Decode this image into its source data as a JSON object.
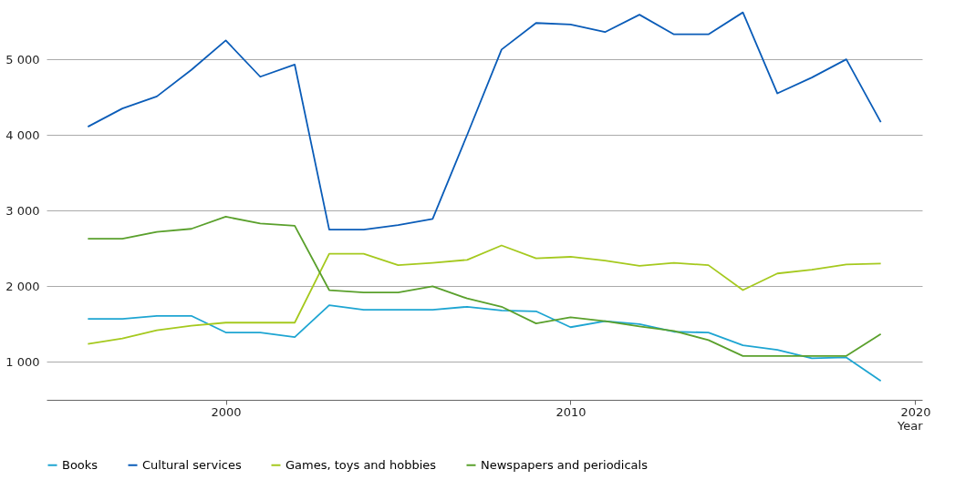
{
  "chart_data": {
    "type": "line",
    "xlabel": "Year",
    "x": [
      1996,
      1997,
      1998,
      1999,
      2000,
      2001,
      2002,
      2003,
      2004,
      2005,
      2006,
      2007,
      2008,
      2009,
      2010,
      2011,
      2012,
      2013,
      2014,
      2015,
      2016,
      2017,
      2018,
      2019
    ],
    "series": [
      {
        "name": "Books",
        "color": "#1ea5d2",
        "values": [
          1570,
          1570,
          1610,
          1610,
          1390,
          1390,
          1330,
          1750,
          1690,
          1690,
          1690,
          1730,
          1680,
          1670,
          1460,
          1540,
          1500,
          1400,
          1390,
          1220,
          1160,
          1050,
          1060,
          750
        ]
      },
      {
        "name": "Cultural services",
        "color": "#0a5cb8",
        "values": [
          4110,
          4350,
          4510,
          4860,
          5250,
          4770,
          4930,
          2750,
          2750,
          2810,
          2890,
          4000,
          5130,
          5480,
          5460,
          5360,
          5590,
          5330,
          5330,
          5620,
          4550,
          4760,
          5000,
          4170
        ]
      },
      {
        "name": "Games, toys and hobbies",
        "color": "#a5c91e",
        "values": [
          1240,
          1310,
          1420,
          1480,
          1520,
          1520,
          1520,
          2430,
          2430,
          2280,
          2310,
          2350,
          2540,
          2370,
          2390,
          2340,
          2270,
          2310,
          2280,
          1950,
          2170,
          2220,
          2290,
          2300
        ]
      },
      {
        "name": "Newspapers and periodicals",
        "color": "#5aa02c",
        "values": [
          2630,
          2630,
          2720,
          2760,
          2920,
          2830,
          2800,
          1950,
          1920,
          1920,
          2000,
          1840,
          1730,
          1510,
          1590,
          1540,
          1470,
          1410,
          1290,
          1080,
          1080,
          1080,
          1080,
          1370
        ]
      }
    ],
    "xlim": [
      1994.8,
      2020.2
    ],
    "ylim": [
      500,
      5760
    ],
    "xticks": [
      2000,
      2010,
      2020
    ],
    "yticks": [
      {
        "value": 1000,
        "label": "1 000"
      },
      {
        "value": 2000,
        "label": "2 000"
      },
      {
        "value": 3000,
        "label": "3 000"
      },
      {
        "value": 4000,
        "label": "4 000"
      },
      {
        "value": 5000,
        "label": "5 000"
      }
    ],
    "grid": "y",
    "legend": "bottom left",
    "line_style": "solid",
    "marker": "none"
  }
}
